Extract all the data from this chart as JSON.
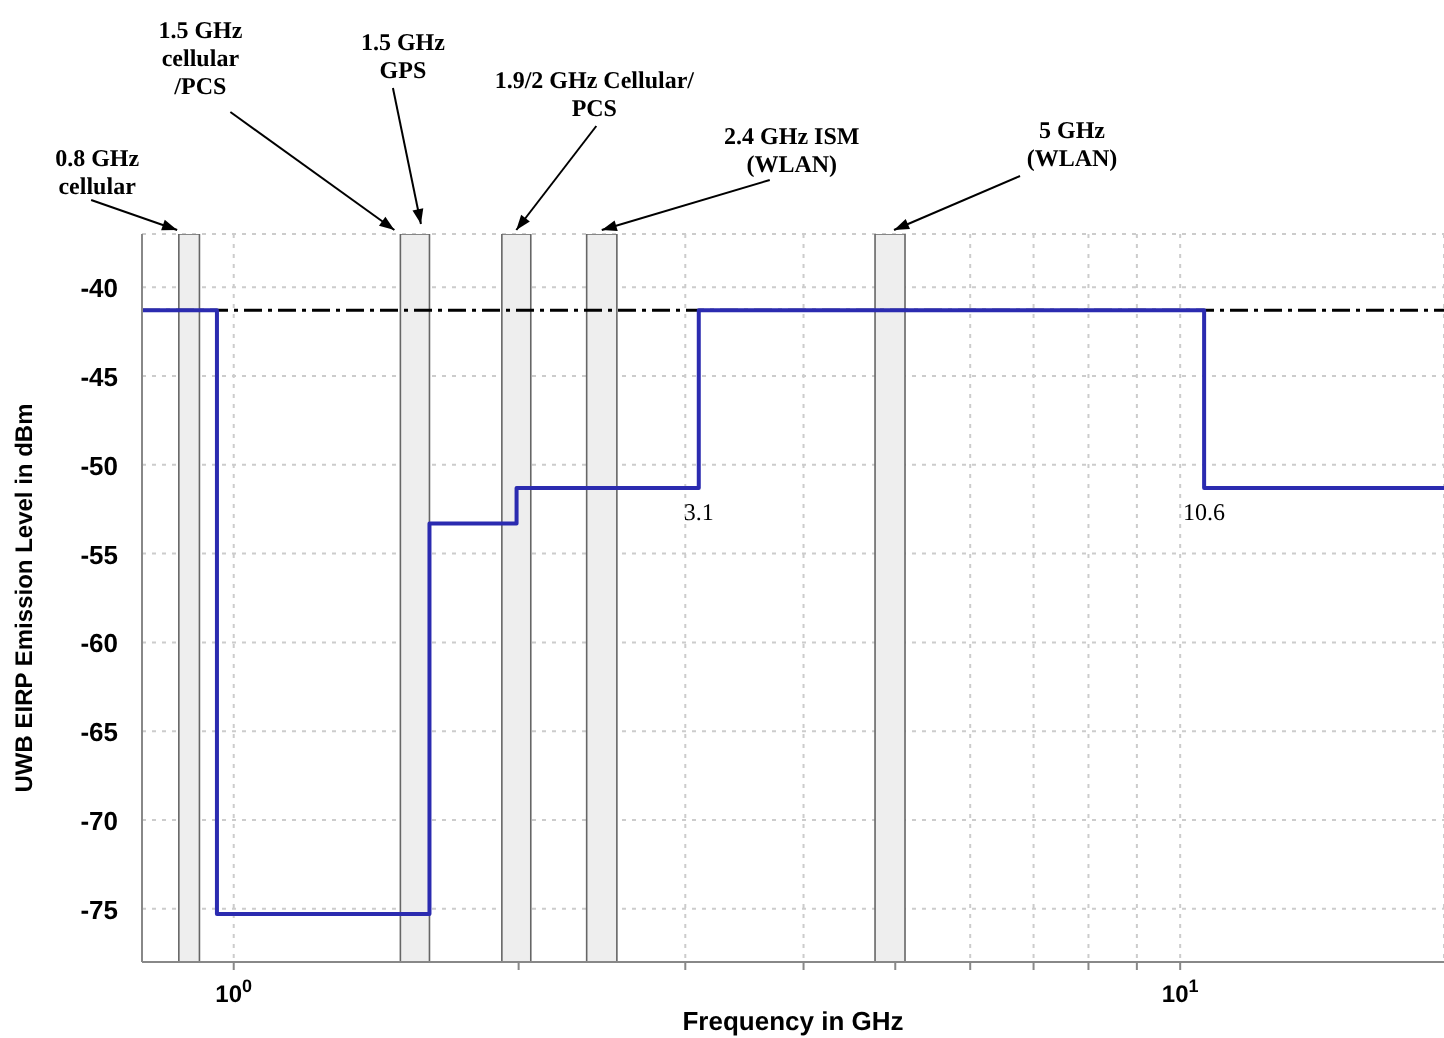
{
  "chart_data": {
    "type": "step",
    "xlabel": "Frequency in GHz",
    "ylabel": "UWB EIRP Emission Level in dBm",
    "x": [
      0.8,
      0.96,
      1.61,
      1.99,
      3.1,
      10.6,
      19
    ],
    "series": [
      {
        "color": "#2b2bb0",
        "values": [
          -41.3,
          -75.3,
          -53.3,
          -51.3,
          -41.3,
          -51.3,
          -51.3
        ]
      }
    ],
    "log": "x",
    "xlim": [
      0.8,
      19
    ],
    "xticks": [
      {
        "value": 1,
        "label": "10$^{0}$"
      },
      {
        "value": 2,
        "label": null
      },
      {
        "value": 3,
        "label": null
      },
      {
        "value": 4,
        "label": null
      },
      {
        "value": 5,
        "label": null
      },
      {
        "value": 6,
        "label": null
      },
      {
        "value": 7,
        "label": null
      },
      {
        "value": 8,
        "label": null
      },
      {
        "value": 9,
        "label": null
      },
      {
        "value": 10,
        "label": "10$^{1}$"
      }
    ],
    "ylim": [
      -78,
      -37
    ],
    "yticks": [
      -75,
      -70,
      -65,
      -60,
      -55,
      -50,
      -45,
      -40
    ],
    "grid": true,
    "marker": "none",
    "line_style": "solid",
    "ref_lines": [
      {
        "axis": "y",
        "value": -41.3,
        "color": "#000000",
        "line_style": "dashdot"
      }
    ],
    "bands": [
      {
        "axis": "x",
        "from": 0.875,
        "to": 0.92,
        "label": "0.8 GHz cellular",
        "color": "#eeeeee"
      },
      {
        "axis": "x",
        "from": 1.5,
        "to": 1.61,
        "label": "1.5 GHz GPS",
        "color": "#eeeeee"
      },
      {
        "axis": "x",
        "from": 1.92,
        "to": 2.06,
        "label": "1.9/2 GHz Cellular/ PCS",
        "color": "#eeeeee"
      },
      {
        "axis": "x",
        "from": 2.36,
        "to": 2.54,
        "label": "2.4 GHz ISM (WLAN)",
        "color": "#eeeeee"
      },
      {
        "axis": "x",
        "from": 4.76,
        "to": 5.12,
        "label": "5 GHz (WLAN)",
        "color": "#eeeeee"
      }
    ],
    "annotations": [
      {
        "text": "1.5 GHz cellular /PCS",
        "x": 1.5,
        "y": -37
      },
      {
        "text": "3.1",
        "x": 3.1,
        "y": -51.3
      },
      {
        "text": "10.6",
        "x": 10.6,
        "y": -51.3
      }
    ]
  }
}
